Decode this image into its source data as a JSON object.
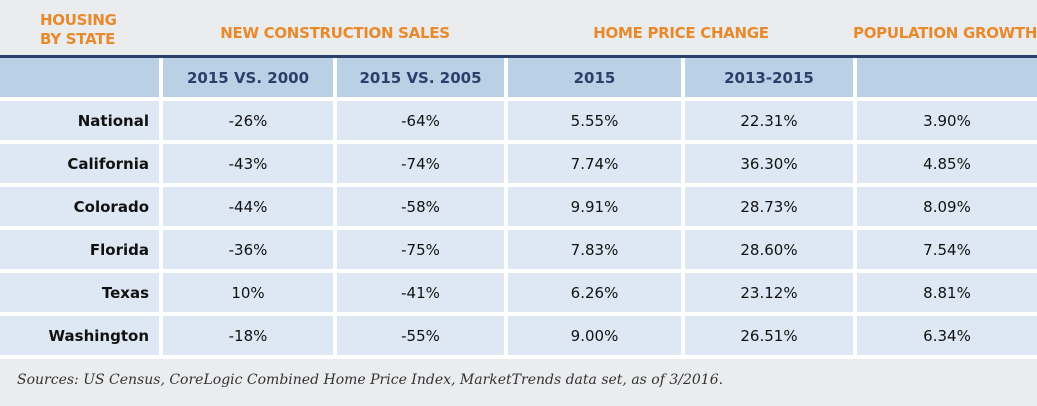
{
  "chart_data": {
    "type": "table",
    "group_headers": [
      "HOUSING\nBY STATE",
      "NEW CONSTRUCTION SALES",
      "HOME PRICE CHANGE",
      "POPULATION GROWTH"
    ],
    "columns": [
      "",
      "2015 VS. 2000",
      "2015 VS. 2005",
      "2015",
      "2013-2015",
      ""
    ],
    "rows": [
      [
        "National",
        "-26%",
        "-64%",
        "5.55%",
        "22.31%",
        "3.90%"
      ],
      [
        "California",
        "-43%",
        "-74%",
        "7.74%",
        "36.30%",
        "4.85%"
      ],
      [
        "Colorado",
        "-44%",
        "-58%",
        "9.91%",
        "28.73%",
        "8.09%"
      ],
      [
        "Florida",
        "-36%",
        "-75%",
        "7.83%",
        "28.60%",
        "7.54%"
      ],
      [
        "Texas",
        "10%",
        "-41%",
        "6.26%",
        "23.12%",
        "8.81%"
      ],
      [
        "Washington",
        "-18%",
        "-55%",
        "9.00%",
        "26.51%",
        "6.34%"
      ]
    ],
    "footnote": "Sources: US Census, CoreLogic Combined Home Price Index, MarketTrends data set, as of 3/2016."
  },
  "colors": {
    "accent": "#e8892b",
    "navy": "#2b3f6b",
    "header_bg": "#b9d0e5",
    "cell_bg": "#dde8f4"
  }
}
